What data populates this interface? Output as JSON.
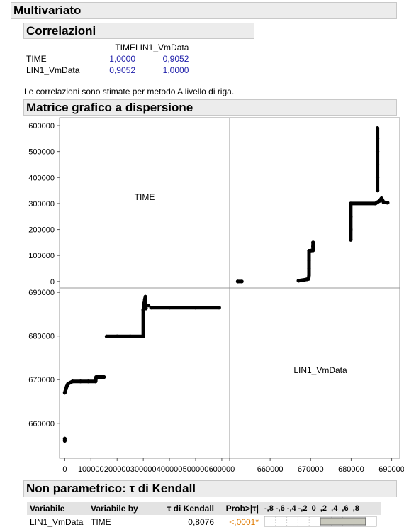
{
  "headers": {
    "multivariate": "Multivariato",
    "correlations": "Correlazioni",
    "scatter_matrix": "Matrice grafico a dispersione",
    "nonparametric": "Non parametrico: τ di Kendall"
  },
  "correlations": {
    "columns": [
      "TIME",
      "LIN1_VmData"
    ],
    "rows": [
      {
        "label": "TIME",
        "values": [
          "1,0000",
          "0,9052"
        ]
      },
      {
        "label": "LIN1_VmData",
        "values": [
          "0,9052",
          "1,0000"
        ]
      }
    ],
    "note": "Le correlazioni sono stimate per metodo A livello di riga."
  },
  "chart_data": {
    "type": "scatter",
    "variables": [
      "TIME",
      "LIN1_VmData"
    ],
    "time_axis": {
      "ticks": [
        0,
        100000,
        200000,
        300000,
        400000,
        500000,
        600000
      ],
      "tick_labels": [
        "0",
        "100000",
        "200000",
        "300000",
        "400000",
        "500000",
        "600000"
      ],
      "range_y": [
        -25000,
        630000
      ],
      "range_x": [
        -20000,
        630000
      ]
    },
    "lin1_axis": {
      "ticks": [
        660000,
        670000,
        680000,
        690000
      ],
      "tick_labels": [
        "660000",
        "670000",
        "680000",
        "690000"
      ],
      "range_y": [
        652000,
        691000
      ],
      "range_x": [
        650000,
        692000
      ]
    },
    "lower_points": [
      {
        "x": 0,
        "y": 656000
      },
      {
        "x": 0,
        "y": 656500
      },
      {
        "x": 0,
        "y": 667000
      },
      {
        "x": 4000,
        "y": 667800
      },
      {
        "x": 8000,
        "y": 668500
      },
      {
        "x": 12000,
        "y": 669000
      },
      {
        "x": 20000,
        "y": 669300
      },
      {
        "x": 30000,
        "y": 669600
      },
      {
        "x": 60000,
        "y": 669600
      },
      {
        "x": 90000,
        "y": 669600
      },
      {
        "x": 118000,
        "y": 669600
      },
      {
        "x": 120000,
        "y": 670600
      },
      {
        "x": 135000,
        "y": 670600
      },
      {
        "x": 150000,
        "y": 670600
      },
      {
        "x": 160000,
        "y": 679900
      },
      {
        "x": 200000,
        "y": 679900
      },
      {
        "x": 250000,
        "y": 679900
      },
      {
        "x": 300000,
        "y": 679900
      },
      {
        "x": 300000,
        "y": 686000
      },
      {
        "x": 302000,
        "y": 686800
      },
      {
        "x": 304000,
        "y": 687600
      },
      {
        "x": 306000,
        "y": 688400
      },
      {
        "x": 308000,
        "y": 689000
      },
      {
        "x": 310000,
        "y": 686300
      },
      {
        "x": 320000,
        "y": 687000
      },
      {
        "x": 330000,
        "y": 686500
      },
      {
        "x": 400000,
        "y": 686500
      },
      {
        "x": 500000,
        "y": 686500
      },
      {
        "x": 590000,
        "y": 686500
      }
    ],
    "upper_points": [
      {
        "x": 652000,
        "y": 0
      },
      {
        "x": 653000,
        "y": 0
      },
      {
        "x": 667000,
        "y": 3000
      },
      {
        "x": 668000,
        "y": 5000
      },
      {
        "x": 669000,
        "y": 8000
      },
      {
        "x": 669500,
        "y": 10000
      },
      {
        "x": 669600,
        "y": 25000
      },
      {
        "x": 669600,
        "y": 50000
      },
      {
        "x": 669600,
        "y": 80000
      },
      {
        "x": 669600,
        "y": 118000
      },
      {
        "x": 670600,
        "y": 120000
      },
      {
        "x": 670600,
        "y": 135000
      },
      {
        "x": 670600,
        "y": 150000
      },
      {
        "x": 679900,
        "y": 160000
      },
      {
        "x": 679900,
        "y": 200000
      },
      {
        "x": 679900,
        "y": 250000
      },
      {
        "x": 679900,
        "y": 300000
      },
      {
        "x": 686000,
        "y": 300000
      },
      {
        "x": 686500,
        "y": 305000
      },
      {
        "x": 687000,
        "y": 310000
      },
      {
        "x": 687500,
        "y": 320000
      },
      {
        "x": 688000,
        "y": 305000
      },
      {
        "x": 689000,
        "y": 303000
      },
      {
        "x": 686500,
        "y": 350000
      },
      {
        "x": 686500,
        "y": 400000
      },
      {
        "x": 686500,
        "y": 450000
      },
      {
        "x": 686500,
        "y": 500000
      },
      {
        "x": 686500,
        "y": 550000
      },
      {
        "x": 686500,
        "y": 590000
      }
    ]
  },
  "kendall": {
    "headers": [
      "Variabile",
      "Variabile by",
      "τ di Kendall",
      "Prob>|τ|",
      "-,8 -,6 -,4 -,2  0  ,2  ,4  ,6  ,8"
    ],
    "rows": [
      {
        "var": "LIN1_VmData",
        "by": "TIME",
        "tau": "0,8076",
        "prob": "<,0001*",
        "tau_value": 0.8076
      }
    ]
  }
}
